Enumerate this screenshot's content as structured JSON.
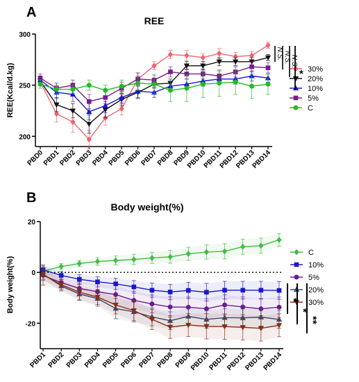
{
  "figure": {
    "panel_a_letter": "A",
    "panel_b_letter": "B"
  },
  "significance": {
    "a": [
      "N.S.",
      "N.S.",
      "N.S.",
      "*"
    ],
    "b": [
      "*",
      "*",
      "**"
    ]
  },
  "chart_data": [
    {
      "type": "line",
      "title": "REE",
      "xlabel": "",
      "ylabel": "REE(Kcal/d.kg)",
      "ylim": [
        190,
        300
      ],
      "yticks": [
        200,
        250,
        300
      ],
      "grid": false,
      "legend_position": "right",
      "categories": [
        "PBD0",
        "PBD1",
        "PBD2",
        "PBD3",
        "PBD4",
        "PBD5",
        "PBD6",
        "PBD7",
        "PBD8",
        "PBD9",
        "PBD10",
        "PBD11",
        "PBD12",
        "PBD13",
        "PBD14"
      ],
      "series": [
        {
          "name": "30%",
          "color": "#f0646e",
          "marker": "diamond",
          "values": [
            253,
            222,
            214,
            197,
            218,
            227,
            256,
            269,
            280,
            279,
            277,
            281,
            278,
            279,
            289
          ],
          "errors": [
            4,
            8,
            10,
            9,
            7,
            6,
            6,
            4,
            4,
            5,
            4,
            5,
            4,
            4,
            3
          ]
        },
        {
          "name": "20%",
          "color": "#111111",
          "marker": "triangle-down",
          "values": [
            254,
            231,
            225,
            212,
            226,
            236,
            243,
            251,
            252,
            269,
            269,
            273,
            273,
            273,
            277
          ],
          "errors": [
            4,
            7,
            7,
            9,
            8,
            6,
            6,
            4,
            4,
            4,
            4,
            4,
            4,
            4,
            3
          ]
        },
        {
          "name": "10%",
          "color": "#1818d0",
          "marker": "triangle-up",
          "values": [
            255,
            243,
            241,
            224,
            230,
            238,
            244,
            243,
            249,
            251,
            254,
            256,
            256,
            259,
            257
          ],
          "errors": [
            4,
            6,
            7,
            8,
            7,
            6,
            6,
            5,
            5,
            5,
            5,
            5,
            5,
            5,
            4
          ]
        },
        {
          "name": "5%",
          "color": "#7a1a8c",
          "marker": "square",
          "values": [
            257,
            247,
            250,
            234,
            238,
            247,
            256,
            255,
            263,
            261,
            261,
            259,
            263,
            268,
            267
          ],
          "errors": [
            4,
            5,
            5,
            7,
            6,
            6,
            6,
            5,
            5,
            5,
            5,
            5,
            5,
            5,
            5
          ]
        },
        {
          "name": "C",
          "color": "#22bb22",
          "marker": "circle",
          "values": [
            251,
            246,
            246,
            250,
            245,
            249,
            252,
            251,
            245,
            247,
            251,
            252,
            253,
            249,
            251
          ],
          "errors": [
            4,
            4,
            4,
            5,
            5,
            6,
            7,
            9,
            11,
            13,
            13,
            13,
            12,
            12,
            10
          ]
        }
      ]
    },
    {
      "type": "line",
      "title": "Body weight(%)",
      "xlabel": "",
      "ylabel": "Body weight(%)",
      "ylim": [
        -30,
        20
      ],
      "yticks": [
        -20,
        0,
        20
      ],
      "grid": false,
      "legend_position": "right",
      "categories": [
        "PBD1",
        "PBD2",
        "PBD3",
        "PBD4",
        "PBD5",
        "PBD6",
        "PBD7",
        "PBD8",
        "PBD9",
        "PBD10",
        "PBD11",
        "PBD12",
        "PBD13",
        "PBD14"
      ],
      "series": [
        {
          "name": "C",
          "color": "#44bb44",
          "marker": "diamond",
          "values": [
            0.5,
            2.3,
            3.5,
            4.3,
            4.7,
            5.1,
            5.7,
            6.1,
            7.3,
            8.0,
            8.3,
            10.1,
            10.5,
            12.8
          ],
          "errors": [
            1.5,
            1.2,
            1.2,
            1.5,
            1.8,
            2,
            2.2,
            2.5,
            2.6,
            2.8,
            3,
            3,
            3,
            2.5
          ]
        },
        {
          "name": "10%",
          "color": "#1818c8",
          "marker": "square",
          "values": [
            1.0,
            -1.2,
            -2.7,
            -3.7,
            -4.5,
            -5.7,
            -7.0,
            -7.7,
            -7.1,
            -7.8,
            -7.0,
            -7.0,
            -7.0,
            -7.1
          ],
          "errors": [
            1.5,
            1.5,
            1.8,
            2,
            2.2,
            2.5,
            2.8,
            3,
            3.2,
            3.5,
            3.5,
            3.5,
            3.5,
            3.5
          ]
        },
        {
          "name": "5%",
          "color": "#6a1a96",
          "marker": "circle",
          "values": [
            -1.2,
            -4.0,
            -6.3,
            -7.6,
            -8.7,
            -11.0,
            -12.4,
            -13.6,
            -13.7,
            -14.3,
            -12.8,
            -13.6,
            -14.3,
            -13.7
          ],
          "errors": [
            2,
            2,
            2.5,
            3,
            3.5,
            3.5,
            3.5,
            4,
            4,
            4,
            4,
            4,
            4,
            4
          ]
        },
        {
          "name": "20%",
          "color": "#3a4a6a",
          "marker": "triangle-up",
          "values": [
            -0.7,
            -5.3,
            -8.5,
            -10.3,
            -14.2,
            -15.5,
            -17.5,
            -19.0,
            -17.3,
            -18.5,
            -17.8,
            -17.9,
            -17.6,
            -18.5
          ],
          "errors": [
            2,
            2,
            2.5,
            3,
            4,
            4,
            3.5,
            3.5,
            3.5,
            3.5,
            3.5,
            3.5,
            3.5,
            3.5
          ]
        },
        {
          "name": "30%",
          "color": "#8b2a14",
          "marker": "triangle-down",
          "values": [
            -1.0,
            -4.8,
            -7.8,
            -9.7,
            -12.8,
            -15.0,
            -18.5,
            -21.5,
            -20.7,
            -21.2,
            -21.3,
            -21.6,
            -22.0,
            -20.8
          ],
          "errors": [
            4,
            2,
            3,
            3,
            3.5,
            4,
            4,
            4.5,
            4.5,
            5,
            5,
            5,
            5,
            4.5
          ]
        }
      ]
    }
  ]
}
